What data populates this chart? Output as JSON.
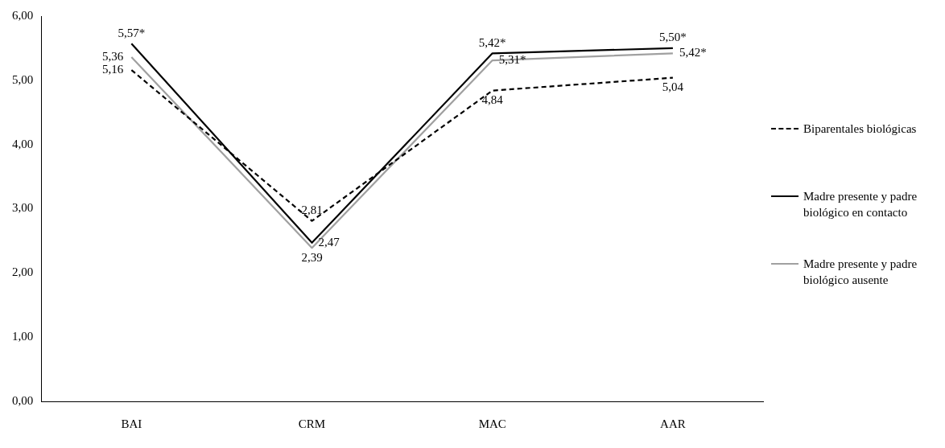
{
  "chart_data": {
    "type": "line",
    "categories": [
      "BAI",
      "CRM",
      "MAC",
      "AAR"
    ],
    "series": [
      {
        "name": "Biparentales biológicas",
        "color": "#000000",
        "line_style": "dashed",
        "values": [
          5.16,
          2.81,
          4.84,
          5.04
        ],
        "value_labels": [
          "5,16",
          "2,81",
          "4,84",
          "5,04"
        ]
      },
      {
        "name": "Madre presente y padre biológico en contacto",
        "color": "#000000",
        "line_style": "solid",
        "values": [
          5.57,
          2.47,
          5.42,
          5.5
        ],
        "value_labels": [
          "5,57*",
          "2,47",
          "5,42*",
          "5,50*"
        ]
      },
      {
        "name": "Madre presente y padre biológico ausente",
        "color": "#a0a0a0",
        "line_style": "solid",
        "values": [
          5.36,
          2.39,
          5.31,
          5.42
        ],
        "value_labels": [
          "5,36",
          "2,39",
          "5,31*",
          "5,42*"
        ]
      }
    ],
    "ylim": [
      0,
      6
    ],
    "yticks": [
      {
        "value": 0,
        "label": "0,00"
      },
      {
        "value": 1,
        "label": "1,00"
      },
      {
        "value": 2,
        "label": "2,00"
      },
      {
        "value": 3,
        "label": "3,00"
      },
      {
        "value": 4,
        "label": "4,00"
      },
      {
        "value": 5,
        "label": "5,00"
      },
      {
        "value": 6,
        "label": "6,00"
      }
    ],
    "grid": false,
    "legend": "right",
    "marker": "none"
  }
}
